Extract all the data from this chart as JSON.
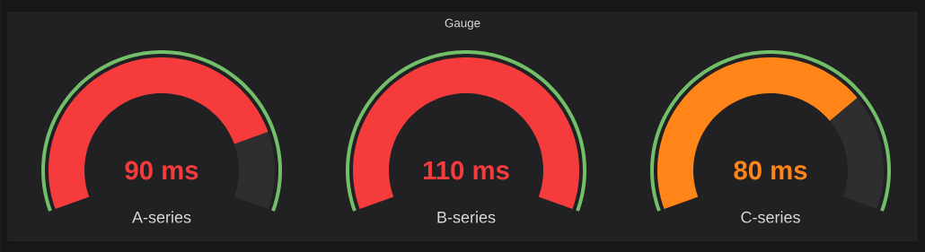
{
  "chart_data": {
    "type": "other",
    "title": "Gauge",
    "categories": [
      "A-series",
      "B-series",
      "C-series"
    ],
    "values": [
      90,
      110,
      80
    ],
    "value_labels": [
      "90 ms",
      "110 ms",
      "80 ms"
    ],
    "colors": [
      "#f53b3b",
      "#f53b3b",
      "#ff8519"
    ]
  }
}
